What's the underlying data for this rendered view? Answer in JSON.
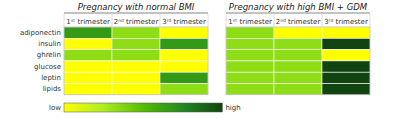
{
  "chart_data": [
    {
      "type": "heatmap",
      "title": "Pregnancy with normal BMI",
      "categories": [
        "1ˢᵗ trimester",
        "2ⁿᵈ trimester",
        "3ʳᵈ trimester"
      ],
      "rows": [
        "adiponectin",
        "insulin",
        "ghrelin",
        "glucose",
        "leptin",
        "lipids"
      ],
      "values": [
        [
          3,
          2,
          1
        ],
        [
          1,
          2,
          3
        ],
        [
          2,
          2,
          1
        ],
        [
          1,
          1,
          1
        ],
        [
          1,
          1,
          3
        ],
        [
          1,
          1,
          2
        ]
      ],
      "colormap": [
        "#ffff00",
        "#aaee22",
        "#55bb00",
        "#228822",
        "#114411"
      ],
      "zlim": [
        1,
        4
      ],
      "colorbar_labels": [
        "low",
        "high"
      ]
    },
    {
      "type": "heatmap",
      "title": "Pregnancy with high BMI + GDM",
      "categories": [
        "1ˢᵗ trimester",
        "2ⁿᵈ trimester",
        "3ʳᵈ trimester"
      ],
      "values": [
        [
          2,
          1,
          1
        ],
        [
          2,
          2,
          4
        ],
        [
          2,
          2,
          1
        ],
        [
          2,
          2,
          4
        ],
        [
          2,
          2,
          4
        ],
        [
          2,
          2,
          4
        ]
      ],
      "colormap": [
        "#ffff00",
        "#aaee22",
        "#55bb00",
        "#228822",
        "#114411"
      ],
      "zlim": [
        1,
        4
      ]
    }
  ]
}
